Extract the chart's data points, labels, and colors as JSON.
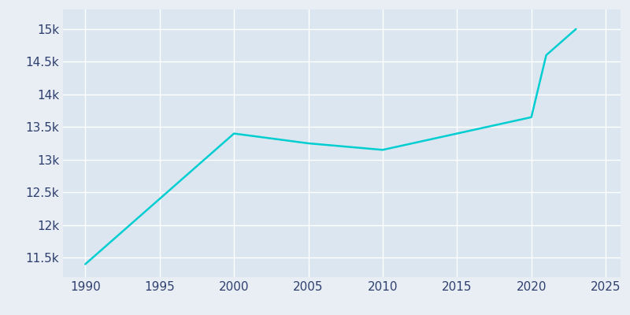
{
  "years": [
    1990,
    2000,
    2005,
    2010,
    2015,
    2020,
    2021,
    2022,
    2023
  ],
  "population": [
    11400,
    13400,
    13250,
    13150,
    13400,
    13650,
    14600,
    14800,
    15000
  ],
  "line_color": "#00CED1",
  "bg_color": "#E8EEF4",
  "plot_bg_color": "#DCE6F0",
  "grid_color": "#FFFFFF",
  "tick_label_color": "#2F3F6F",
  "xlim": [
    1988.5,
    2026
  ],
  "ylim": [
    11200,
    15300
  ],
  "xticks": [
    1990,
    1995,
    2000,
    2005,
    2010,
    2015,
    2020,
    2025
  ],
  "yticks": [
    11500,
    12000,
    12500,
    13000,
    13500,
    14000,
    14500,
    15000
  ],
  "line_width": 1.8,
  "figsize": [
    8.0,
    4.0
  ],
  "dpi": 100
}
